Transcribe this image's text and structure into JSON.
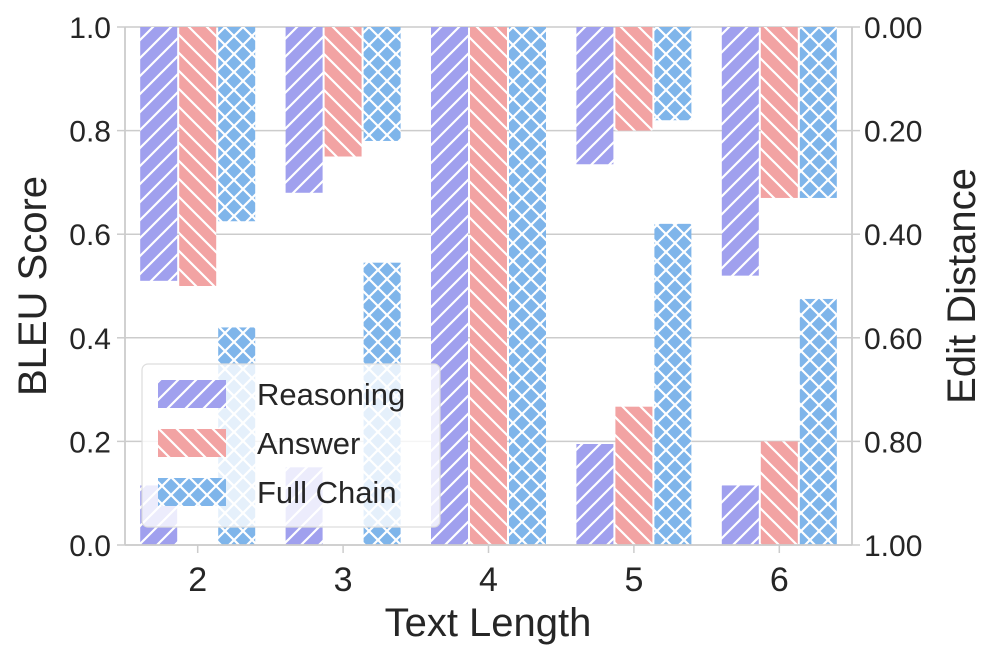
{
  "chart_data": {
    "type": "bar",
    "categories": [
      "2",
      "3",
      "4",
      "5",
      "6"
    ],
    "xlabel": "Text Length",
    "ylabel": "BLEU Score",
    "ylabel_right": "Edit Distance",
    "ylim": [
      0,
      1
    ],
    "ylim_right": [
      0,
      1
    ],
    "right_axis_inverted": true,
    "yticks": [
      "0.0",
      "0.2",
      "0.4",
      "0.6",
      "0.8",
      "1.0"
    ],
    "yticks_right": [
      "0.00",
      "0.20",
      "0.40",
      "0.60",
      "0.80",
      "1.00"
    ],
    "grid": true,
    "legend_position": "lower-left",
    "series": [
      {
        "name": "Reasoning",
        "color": "#a0a0ee",
        "hatch": "forward-diagonal",
        "bleu": [
          0.115,
          0.15,
          1.0,
          0.195,
          0.115
        ],
        "edit_distance": [
          0.49,
          0.32,
          1.0,
          0.265,
          0.48
        ]
      },
      {
        "name": "Answer",
        "color": "#f2a3a3",
        "hatch": "back-diagonal",
        "bleu": [
          0.0,
          0.0,
          1.0,
          0.267,
          0.2
        ],
        "edit_distance": [
          0.5,
          0.25,
          1.0,
          0.2,
          0.33
        ]
      },
      {
        "name": "Full Chain",
        "color": "#7fb5ea",
        "hatch": "crosshatch",
        "bleu": [
          0.42,
          0.545,
          1.0,
          0.62,
          0.475
        ],
        "edit_distance": [
          0.375,
          0.22,
          1.0,
          0.18,
          0.33
        ]
      }
    ]
  }
}
